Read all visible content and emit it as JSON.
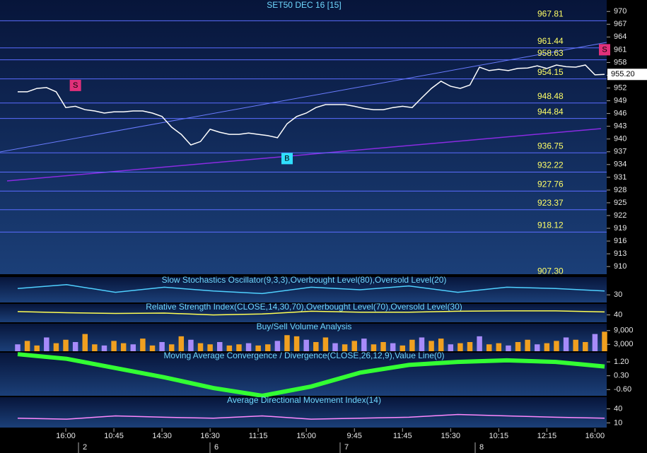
{
  "chart_data": [
    {
      "type": "line",
      "title": "SET50 DEC 16  [15]",
      "color": "#ffffff",
      "categories": [
        null,
        null,
        null,
        null,
        null,
        "16:00",
        null,
        null,
        null,
        null,
        "10:45",
        null,
        null,
        null,
        null,
        "14:30",
        null,
        null,
        null,
        null,
        "16:30",
        null,
        null,
        null,
        null,
        "11:15",
        null,
        null,
        null,
        null,
        "15:00",
        null,
        null,
        null,
        null,
        "9:45",
        null,
        null,
        null,
        null,
        "11:45",
        null,
        null,
        null,
        null,
        "15:30",
        null,
        null,
        null,
        null,
        "10:15",
        null,
        null,
        null,
        null,
        "12:15",
        null,
        null,
        null,
        null,
        "16:00",
        null
      ],
      "values": [
        951.1,
        951.1,
        951.9,
        952.1,
        951.1,
        947.4,
        947.7,
        946.9,
        946.6,
        946.1,
        946.4,
        946.4,
        946.6,
        946.6,
        946.1,
        945.3,
        942.8,
        941.1,
        938.6,
        939.4,
        942.3,
        941.6,
        941.1,
        941.1,
        941.4,
        941.1,
        940.8,
        940.3,
        943.6,
        945.3,
        946.1,
        947.4,
        948.1,
        948.1,
        948.1,
        947.7,
        947.2,
        946.9,
        946.9,
        947.4,
        947.7,
        947.4,
        949.7,
        951.9,
        953.6,
        952.4,
        951.9,
        952.7,
        956.9,
        956.1,
        956.4,
        956.1,
        956.6,
        956.7,
        957.2,
        956.6,
        957.4,
        957.0,
        956.9,
        957.4,
        955.1,
        955.2
      ],
      "days": [
        "2",
        "6",
        "7",
        "8"
      ],
      "ylim": [
        908.2,
        972.7
      ],
      "yticks": [
        970,
        967,
        964,
        961,
        958,
        955,
        952,
        949,
        946,
        943,
        940,
        937,
        934,
        931,
        928,
        925,
        922,
        919,
        916,
        913,
        910
      ],
      "levels": [
        967.81,
        961.44,
        958.63,
        954.15,
        948.48,
        944.84,
        936.75,
        932.22,
        927.76,
        923.37,
        918.12,
        {
          "value": 907.3,
          "label": "907.30"
        }
      ],
      "last_price": {
        "value": 955.2,
        "label": "955.20"
      },
      "signals": [
        {
          "label": "S",
          "index": 6,
          "value": 952.6,
          "color": "#e0307a"
        },
        {
          "label": "B",
          "index": 28,
          "value": 935.4,
          "color": "#30e0ff"
        },
        {
          "label": "S",
          "index": 61,
          "value": 961.0,
          "color": "#e0307a"
        }
      ]
    },
    {
      "type": "line",
      "title": "Slow Stochastics Oscillator(9,3,3),Overbought Level(80),Oversold Level(20)",
      "color": "#4fd0ff",
      "categories": [
        null,
        null,
        null,
        null,
        null,
        null,
        null,
        null,
        null,
        null,
        null,
        null,
        null
      ],
      "values": [
        55,
        70,
        40,
        60,
        45,
        35,
        60,
        50,
        65,
        40,
        60,
        55,
        45
      ],
      "ylim": [
        0,
        100
      ],
      "yticks": [
        30
      ]
    },
    {
      "type": "line",
      "title": "Relative Strength Index(CLOSE,14,30,70),Overbought Level(70),Oversold Level(30)",
      "color": "#ffff55",
      "categories": [
        null,
        null,
        null,
        null,
        null,
        null,
        null,
        null,
        null,
        null,
        null,
        null,
        null
      ],
      "values": [
        58,
        52,
        48,
        50,
        40,
        45,
        60,
        55,
        55,
        60,
        62,
        62,
        56
      ],
      "ylim": [
        0,
        100
      ],
      "yticks": [
        40
      ]
    },
    {
      "type": "bar",
      "title": "Buy/Sell Volume Analysis",
      "color": "#f0a020",
      "categories": [
        null,
        null,
        null,
        null,
        null,
        null,
        null,
        null,
        null,
        null,
        null,
        null,
        null,
        null,
        null,
        null,
        null,
        null,
        null,
        null,
        null,
        null,
        null,
        null,
        null,
        null,
        null,
        null,
        null,
        null,
        null,
        null,
        null,
        null,
        null,
        null,
        null,
        null,
        null,
        null,
        null,
        null,
        null,
        null,
        null,
        null,
        null,
        null,
        null,
        null,
        null,
        null,
        null,
        null,
        null,
        null,
        null,
        null,
        null,
        null,
        null,
        null
      ],
      "values": [
        3000,
        4500,
        2500,
        6000,
        3500,
        5000,
        4000,
        7500,
        3000,
        2500,
        4500,
        3500,
        3000,
        5500,
        2500,
        4000,
        3000,
        6500,
        5000,
        3500,
        3000,
        4000,
        2500,
        3000,
        3500,
        2500,
        3000,
        4500,
        7000,
        6500,
        5000,
        4000,
        6000,
        3500,
        3000,
        4500,
        5500,
        3000,
        4000,
        3500,
        2500,
        5000,
        6000,
        4500,
        5500,
        3000,
        3500,
        4000,
        6500,
        3000,
        3500,
        2500,
        4000,
        5000,
        3000,
        3500,
        4500,
        6000,
        5000,
        4000,
        7500,
        8500
      ],
      "ylim": [
        0,
        12000
      ],
      "yticks": [
        {
          "value": 9000,
          "label": "9,000"
        },
        {
          "value": 3000,
          "label": "3,000"
        }
      ]
    },
    {
      "type": "line",
      "title": "Moving Average Convergence / Divergence(CLOSE,26,12,9),Value Line(0)",
      "color": "#33ff33",
      "categories": [
        null,
        null,
        null,
        null,
        null,
        null,
        null,
        null,
        null,
        null,
        null,
        null,
        null
      ],
      "values": [
        1.7,
        1.4,
        0.8,
        0.2,
        -0.5,
        -1.0,
        -0.4,
        0.5,
        1.0,
        1.2,
        1.3,
        1.2,
        0.9
      ],
      "ylim": [
        -1.0,
        1.8
      ],
      "yticks": [
        {
          "value": 1.2,
          "label": "1.20"
        },
        {
          "value": 0.3,
          "label": "0.30"
        },
        {
          "value": -0.6,
          "label": "-0.60"
        }
      ]
    },
    {
      "type": "line",
      "title": "Average Directional Movement Index(14)",
      "color": "#ff88ff",
      "categories": [
        null,
        null,
        null,
        null,
        null,
        null,
        null,
        null,
        null,
        null,
        null,
        null,
        null
      ],
      "values": [
        20,
        18,
        25,
        22,
        20,
        25,
        18,
        20,
        22,
        28,
        25,
        22,
        20
      ],
      "ylim": [
        0,
        65
      ],
      "yticks": [
        40,
        10
      ]
    }
  ]
}
